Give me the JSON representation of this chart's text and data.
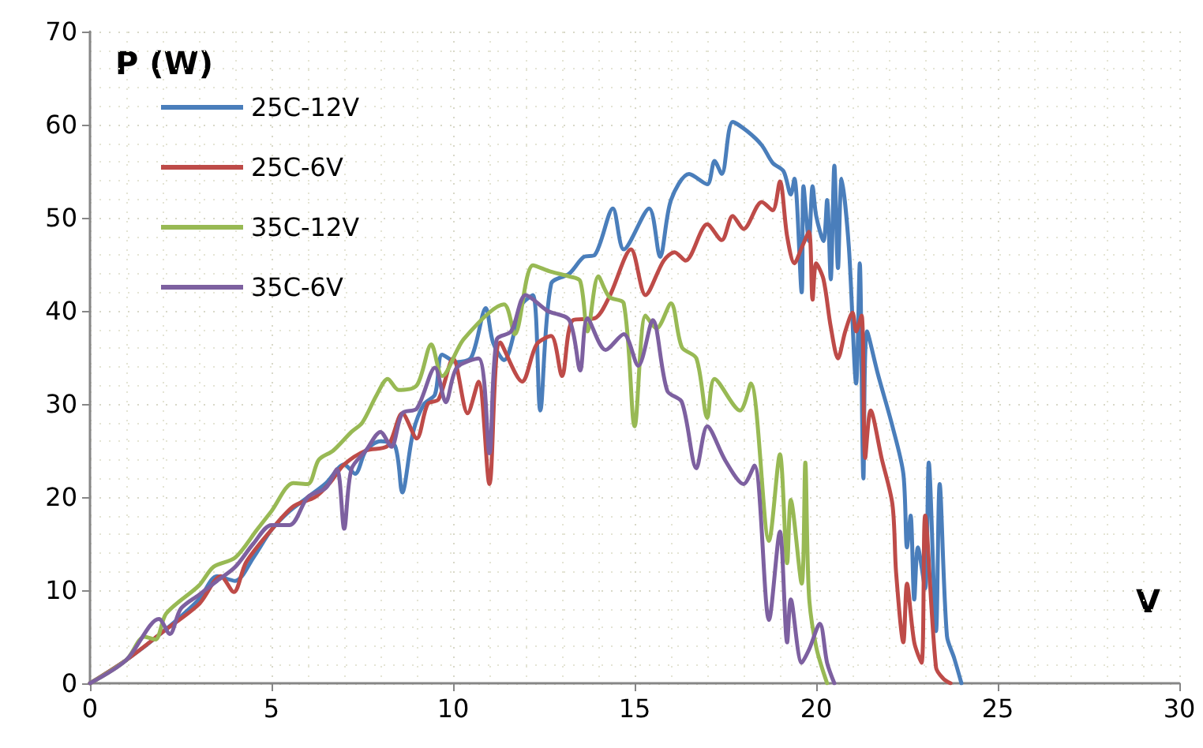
{
  "chart_data": {
    "type": "line",
    "xlabel": "V",
    "ylabel": "P (W)",
    "xlim": [
      0,
      30
    ],
    "xticks": [
      0,
      5,
      10,
      15,
      20,
      25,
      30
    ],
    "ylim": [
      0,
      70
    ],
    "yticks": [
      0,
      10,
      20,
      30,
      40,
      50,
      60,
      70
    ],
    "grid": true,
    "legend": "top left",
    "marker": "none",
    "line_style": "solid",
    "series": [
      {
        "name": "25C-12V",
        "color": "#4a7ebb",
        "x": [
          0,
          1,
          2,
          3,
          3.5,
          4,
          4.5,
          5,
          5.5,
          6,
          6.5,
          7,
          7.3,
          7.6,
          8,
          8.4,
          8.6,
          8.9,
          9.2,
          9.5,
          9.7,
          10.1,
          10.5,
          10.9,
          11.1,
          11.4,
          11.9,
          12.2,
          12.4,
          12.7,
          13.2,
          13.6,
          13.9,
          14.4,
          14.7,
          15.4,
          15.7,
          16,
          16.5,
          17,
          17.2,
          17.4,
          17.7,
          18.1,
          18.5,
          18.8,
          19.1,
          19.3,
          19.4,
          19.6,
          19.65,
          19.8,
          19.9,
          20,
          20.2,
          20.3,
          20.4,
          20.5,
          20.6,
          20.7,
          20.9,
          21.1,
          21.2,
          21.3,
          21.4,
          21.7,
          22.1,
          22.4,
          22.5,
          22.6,
          22.7,
          22.8,
          23,
          23.1,
          23.3,
          23.4,
          23.6,
          23.8,
          24
        ],
        "values": [
          0,
          2.5,
          5.5,
          9,
          11.5,
          11,
          13.5,
          16.5,
          18.5,
          20,
          21.5,
          23.5,
          22.5,
          25,
          26,
          25.5,
          20.5,
          27,
          30,
          31,
          35.3,
          34.5,
          35,
          40.3,
          36.6,
          34.7,
          40.7,
          41.7,
          29.3,
          42.9,
          44,
          45.8,
          46,
          51,
          46.6,
          51,
          45.8,
          51.9,
          54.7,
          53.6,
          56.1,
          54.7,
          60.3,
          59.3,
          57.8,
          55.9,
          55,
          52.5,
          54.2,
          42,
          53.4,
          47.5,
          53.4,
          50.2,
          47.5,
          51.9,
          43.4,
          55.6,
          44.6,
          54.2,
          46.8,
          32.2,
          45.1,
          22,
          37.8,
          33.2,
          27.6,
          22.5,
          14.6,
          18,
          9,
          14.6,
          10.2,
          23.7,
          5.6,
          21.4,
          5.1,
          2.7,
          0
        ]
      },
      {
        "name": "25C-6V",
        "color": "#be4b48",
        "x": [
          0,
          1,
          2,
          3,
          3.6,
          3.96,
          4.3,
          5,
          5.6,
          6.2,
          6.6,
          7,
          7.6,
          8.2,
          8.6,
          9,
          9.3,
          9.6,
          10,
          10.4,
          10.7,
          11,
          11.3,
          11.9,
          12.3,
          12.7,
          13,
          13.3,
          13.9,
          14.3,
          14.9,
          15.3,
          15.8,
          16.1,
          16.4,
          17,
          17.4,
          17.7,
          18,
          18.5,
          18.8,
          19,
          19.2,
          19.4,
          19.6,
          19.8,
          19.9,
          20,
          20.2,
          20.4,
          20.6,
          20.8,
          21,
          21.1,
          21.25,
          21.35,
          21.5,
          21.8,
          22.1,
          22.2,
          22.4,
          22.5,
          22.7,
          22.9,
          23,
          23.3,
          23.5,
          23.7
        ],
        "values": [
          0,
          2.5,
          5.5,
          8.5,
          11.5,
          9.8,
          13,
          16.5,
          19,
          20,
          21.5,
          23.5,
          25,
          25.5,
          29,
          26.3,
          30,
          30.5,
          34.9,
          29,
          32.4,
          21.4,
          36.6,
          32.4,
          36.4,
          37.3,
          33,
          39,
          39.2,
          41.5,
          46.6,
          41.7,
          45.4,
          46.3,
          45.4,
          49.3,
          47.6,
          50.2,
          48.8,
          51.7,
          50.8,
          53.9,
          48,
          45.1,
          46.8,
          48.5,
          41.2,
          45.1,
          43.4,
          38.3,
          34.9,
          37.8,
          39.8,
          37.8,
          39.5,
          24.2,
          29.3,
          24.2,
          19.2,
          11.9,
          4.4,
          10.7,
          4.4,
          2.2,
          18,
          1.7,
          0.5,
          0
        ]
      },
      {
        "name": "35C-12V",
        "color": "#98b954",
        "x": [
          0,
          1,
          1.5,
          1.8,
          2.1,
          3,
          3.4,
          4,
          4.6,
          5,
          5.6,
          6,
          6.3,
          6.7,
          7.2,
          7.5,
          7.9,
          8.2,
          8.5,
          9,
          9.4,
          9.7,
          10.3,
          11.4,
          11.7,
          12.2,
          12.7,
          13.2,
          13.5,
          13.7,
          14,
          14.3,
          14.7,
          15,
          15.3,
          15.6,
          16,
          16.3,
          16.7,
          17,
          17.2,
          17.9,
          18.2,
          18.7,
          19,
          19.2,
          19.3,
          19.6,
          19.7,
          19.8,
          20,
          20.3
        ],
        "values": [
          0,
          2.5,
          5,
          4.7,
          7.5,
          10.5,
          12.5,
          13.5,
          16.5,
          18.5,
          21.5,
          21.4,
          24,
          25,
          27,
          28,
          31,
          32.7,
          31.5,
          32,
          36.4,
          33,
          37,
          40.7,
          37.5,
          44.9,
          44.2,
          43.7,
          43.2,
          37.8,
          43.7,
          41.5,
          40.8,
          27.6,
          39.5,
          38.1,
          40.8,
          36.1,
          34.9,
          28.5,
          32.7,
          29.3,
          32.2,
          15.3,
          24.6,
          12.9,
          19.7,
          10.7,
          23.7,
          9.5,
          3.9,
          0
        ]
      },
      {
        "name": "35C-6V",
        "color": "#7d60a0",
        "x": [
          0,
          1,
          1.9,
          2.2,
          2.5,
          3,
          3.5,
          4,
          4.5,
          5,
          5.5,
          6,
          6.5,
          6.8,
          7,
          7.2,
          7.6,
          8,
          8.3,
          8.6,
          9,
          9.5,
          9.8,
          10.1,
          10.7,
          11,
          11.2,
          11.6,
          12,
          12.6,
          13.2,
          13.5,
          13.7,
          14.2,
          14.7,
          15.1,
          15.5,
          15.9,
          16.3,
          16.7,
          17,
          17.5,
          18,
          18.3,
          18.7,
          19,
          19.2,
          19.3,
          19.6,
          19.8,
          20.1,
          20.3,
          20.5
        ],
        "values": [
          0,
          2.5,
          6.9,
          5.3,
          8,
          9.5,
          11,
          12.5,
          15,
          17,
          17,
          20,
          21,
          23,
          16.6,
          23,
          25,
          27,
          25.4,
          29,
          29.5,
          33.9,
          30.2,
          33.9,
          34.9,
          24.7,
          36.9,
          37.8,
          41.7,
          40,
          39,
          33.6,
          39.2,
          35.8,
          37.5,
          34.1,
          39,
          31.4,
          30.2,
          23.1,
          27.6,
          23.9,
          21.4,
          23.4,
          6.8,
          16.3,
          4.4,
          9,
          2.2,
          3.6,
          6.4,
          2.2,
          0
        ]
      }
    ]
  }
}
